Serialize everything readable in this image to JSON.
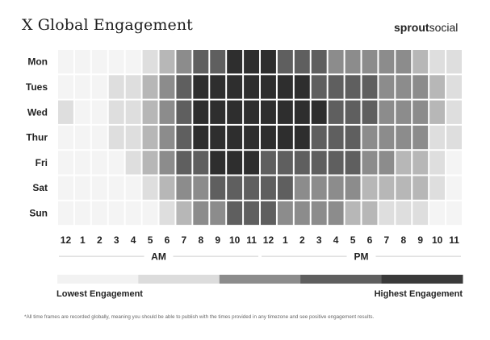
{
  "header": {
    "title": "X Global Engagement",
    "brand_bold": "sprout",
    "brand_light": "social"
  },
  "chart_data": {
    "type": "heatmap",
    "title": "X Global Engagement",
    "y_categories": [
      "Mon",
      "Tues",
      "Wed",
      "Thur",
      "Fri",
      "Sat",
      "Sun"
    ],
    "x_categories": [
      "12",
      "1",
      "2",
      "3",
      "4",
      "5",
      "6",
      "7",
      "8",
      "9",
      "10",
      "11",
      "12",
      "1",
      "2",
      "3",
      "4",
      "5",
      "6",
      "7",
      "8",
      "9",
      "10",
      "11"
    ],
    "x_groups": [
      {
        "label": "AM",
        "start": 0,
        "end": 11
      },
      {
        "label": "PM",
        "start": 12,
        "end": 23
      }
    ],
    "levels": [
      "#f4f4f4",
      "#dedede",
      "#b7b7b7",
      "#8c8c8c",
      "#5f5f5f",
      "#2e2e2e"
    ],
    "values": [
      [
        0,
        0,
        0,
        0,
        0,
        1,
        2,
        3,
        4,
        4,
        5,
        5,
        5,
        4,
        4,
        4,
        3,
        3,
        3,
        3,
        3,
        2,
        1,
        1
      ],
      [
        0,
        0,
        0,
        1,
        1,
        2,
        3,
        4,
        5,
        5,
        5,
        5,
        5,
        5,
        5,
        4,
        4,
        4,
        4,
        3,
        3,
        3,
        2,
        1
      ],
      [
        1,
        0,
        0,
        1,
        1,
        2,
        3,
        4,
        5,
        5,
        5,
        5,
        5,
        5,
        5,
        5,
        4,
        4,
        4,
        3,
        3,
        3,
        2,
        1
      ],
      [
        0,
        0,
        0,
        1,
        1,
        2,
        3,
        4,
        5,
        5,
        5,
        5,
        5,
        5,
        5,
        4,
        4,
        4,
        3,
        3,
        3,
        3,
        1,
        1
      ],
      [
        0,
        0,
        0,
        0,
        1,
        2,
        3,
        4,
        4,
        5,
        5,
        5,
        4,
        4,
        4,
        4,
        4,
        4,
        3,
        3,
        2,
        2,
        1,
        0
      ],
      [
        0,
        0,
        0,
        0,
        0,
        1,
        2,
        3,
        3,
        4,
        4,
        4,
        4,
        4,
        3,
        3,
        3,
        3,
        2,
        2,
        2,
        2,
        1,
        0
      ],
      [
        0,
        0,
        0,
        0,
        0,
        0,
        1,
        2,
        3,
        3,
        4,
        4,
        4,
        3,
        3,
        3,
        3,
        2,
        2,
        1,
        1,
        1,
        0,
        0
      ]
    ],
    "legend": {
      "low_label": "Lowest Engagement",
      "high_label": "Highest Engagement",
      "colors": [
        "#f2f2f2",
        "#dcdcdc",
        "#8c8c8c",
        "#5f5f5f",
        "#3a3a3a"
      ]
    }
  },
  "footnote": "*All time frames are recorded globally, meaning you should be able to publish with the times provided in any timezone and see positive engagement results."
}
